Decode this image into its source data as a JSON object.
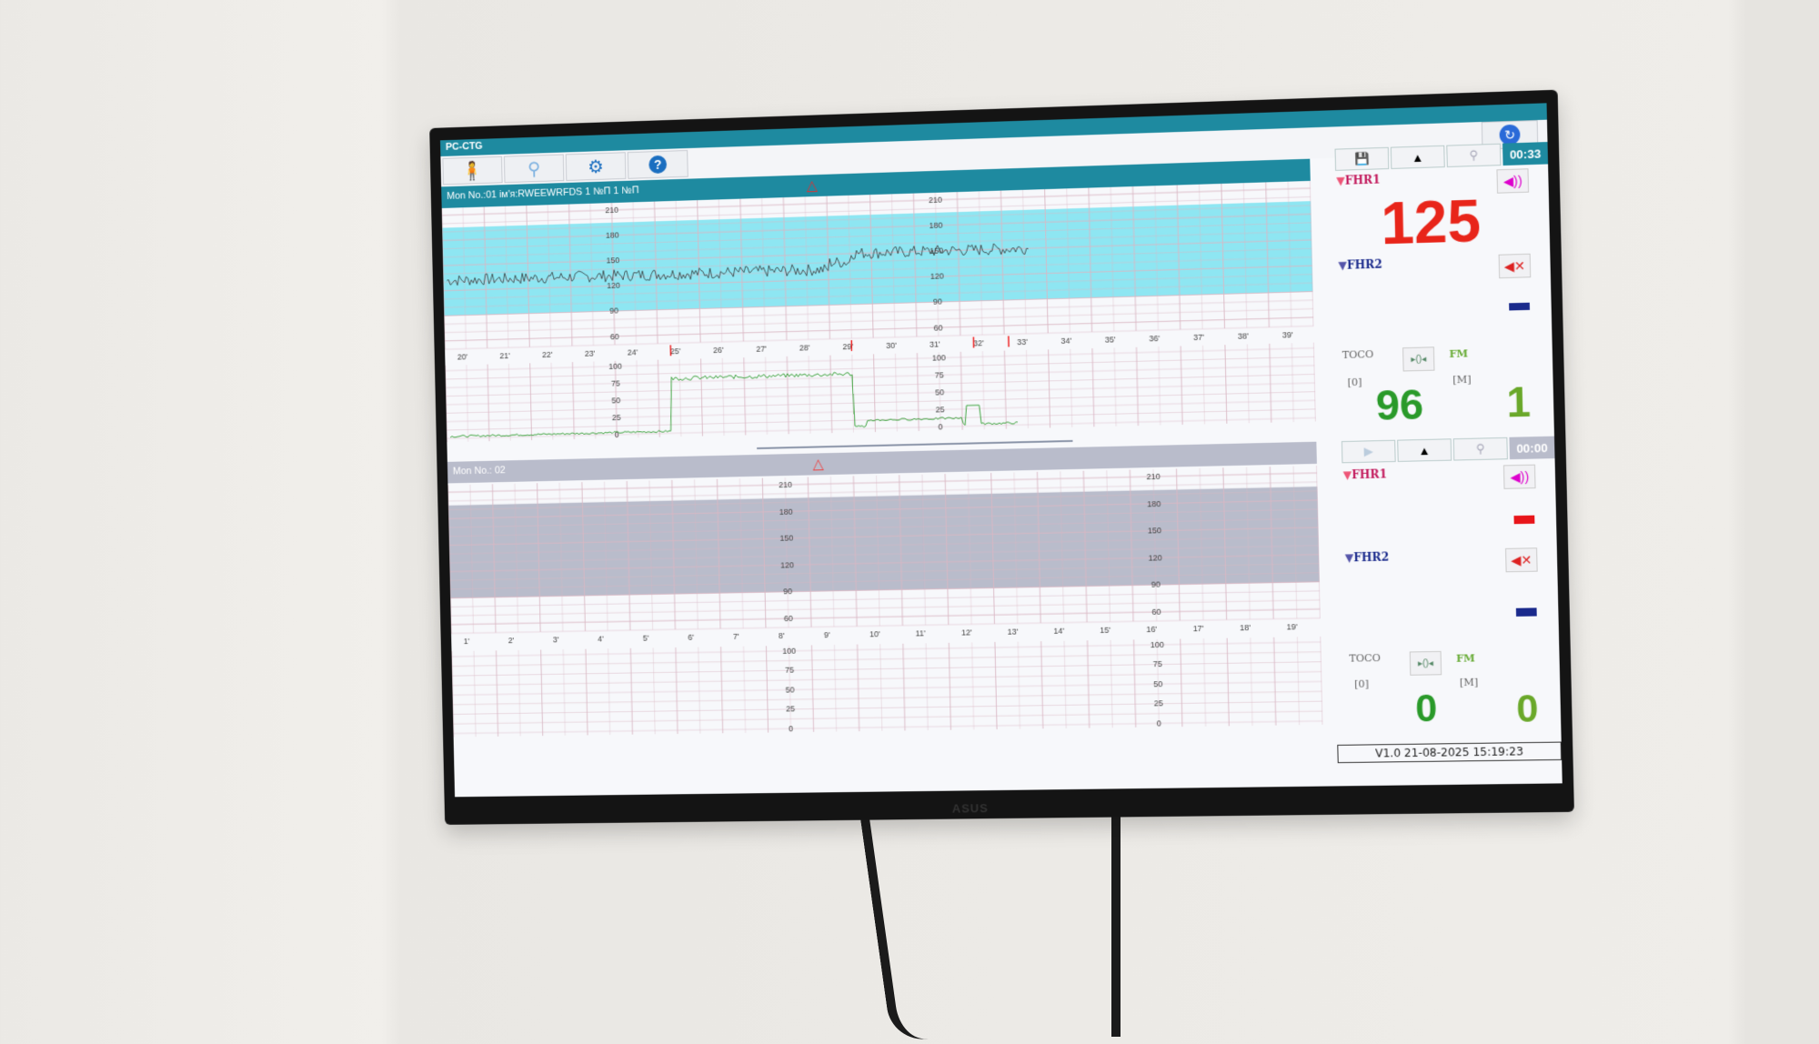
{
  "app_title": "PC-CTG",
  "toolbar": [
    {
      "icon": "patient-info-icon",
      "glyph": "🧍"
    },
    {
      "icon": "search-icon",
      "glyph": "⚲"
    },
    {
      "icon": "settings-gear-icon",
      "glyph": "⚙"
    },
    {
      "icon": "help-icon",
      "glyph": "?"
    }
  ],
  "refresh_icon": "refresh-globe-icon",
  "monitor1": {
    "header": "Mon No.:01 ім'я:RWEEWRFDS  1 №П 1 №П",
    "time": "00:33",
    "accent": "#1e8aa0",
    "fhr1_label": "FHR1",
    "fhr1_value": "125",
    "fhr2_label": "FHR2",
    "toco_label": "TOCO",
    "toco_unit": "[0]",
    "toco_value": "96",
    "fm_label": "FM",
    "fm_unit": "[M]",
    "fm_value": "1",
    "fhr_ticks": [
      "210",
      "180",
      "150",
      "120",
      "90",
      "60"
    ],
    "toco_ticks": [
      "100",
      "75",
      "50",
      "25",
      "0"
    ],
    "time_ticks": [
      "20'",
      "21'",
      "22'",
      "23'",
      "24'",
      "25'",
      "26'",
      "27'",
      "28'",
      "29'",
      "30'",
      "31'",
      "32'",
      "33'",
      "34'",
      "35'",
      "36'",
      "37'",
      "38'",
      "39'"
    ]
  },
  "monitor2": {
    "header": "Mon No.: 02",
    "time": "00:00",
    "fhr1_label": "FHR1",
    "fhr2_label": "FHR2",
    "toco_label": "TOCO",
    "toco_unit": "[0]",
    "toco_value": "0",
    "fm_label": "FM",
    "fm_unit": "[M]",
    "fm_value": "0",
    "fhr_ticks": [
      "210",
      "180",
      "150",
      "120",
      "90",
      "60"
    ],
    "toco_ticks": [
      "100",
      "75",
      "50",
      "25",
      "0"
    ],
    "time_ticks": [
      "1'",
      "2'",
      "3'",
      "4'",
      "5'",
      "6'",
      "7'",
      "8'",
      "9'",
      "10'",
      "11'",
      "12'",
      "13'",
      "14'",
      "15'",
      "16'",
      "17'",
      "18'",
      "19'"
    ]
  },
  "footer": "V1.0  21-08-2025 15:19:23",
  "monitor_brand": "ASUS",
  "colors": {
    "fhr1": "#e0201a",
    "fhr2": "#1a2a8c",
    "toco": "#2a9a2a",
    "fm": "#6aa82a",
    "band1": "#8ee6f2",
    "band2": "#b9bccb"
  }
}
